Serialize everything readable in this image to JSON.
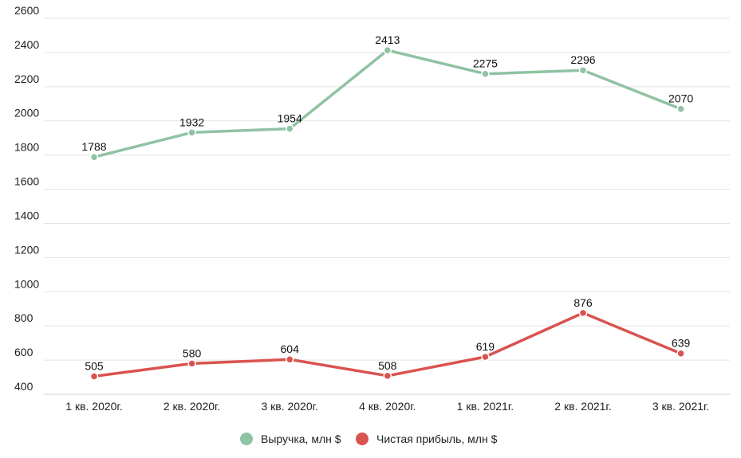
{
  "chart_data": {
    "type": "line",
    "title": "",
    "xlabel": "",
    "ylabel": "",
    "categories": [
      "1 кв. 2020г.",
      "2 кв. 2020г.",
      "3 кв. 2020г.",
      "4 кв. 2020г.",
      "1 кв. 2021г.",
      "2 кв. 2021г.",
      "3 кв. 2021г."
    ],
    "ylim": [
      400,
      2600
    ],
    "yticks": [
      400,
      600,
      800,
      1000,
      1200,
      1400,
      1600,
      1800,
      2000,
      2200,
      2400,
      2600
    ],
    "grid": true,
    "legend_position": "bottom-center",
    "series": [
      {
        "name": "Выручка, млн $",
        "color": "#8fc3a3",
        "values": [
          1788,
          1932,
          1954,
          2413,
          2275,
          2296,
          2070
        ]
      },
      {
        "name": "Чистая прибыль, млн $",
        "color": "#d9534f",
        "values": [
          505,
          580,
          604,
          508,
          619,
          876,
          639
        ]
      }
    ]
  }
}
